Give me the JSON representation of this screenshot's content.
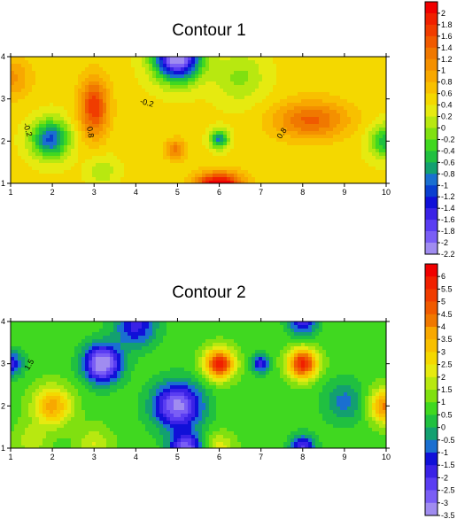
{
  "chart_data": [
    {
      "type": "heatmap",
      "subtype": "filled-contour",
      "title": "Contour 1",
      "x_ticks": [
        1,
        2,
        3,
        4,
        5,
        6,
        7,
        8,
        9,
        10
      ],
      "y_ticks": [
        1,
        2,
        3,
        4
      ],
      "xlim": [
        1,
        10
      ],
      "ylim": [
        1,
        4
      ],
      "grid": false,
      "levels": [
        -2.2,
        -2,
        -1.8,
        -1.6,
        -1.4,
        -1.2,
        -1,
        -0.8,
        -0.6,
        -0.4,
        -0.2,
        0,
        0.2,
        0.4,
        0.6,
        0.8,
        1,
        1.2,
        1.4,
        1.6,
        1.8,
        2
      ],
      "colorbar_labels": [
        "2",
        "1.8",
        "1.6",
        "1.4",
        "1.2",
        "1",
        "0.8",
        "0.6",
        "0.4",
        "0.2",
        "0",
        "-0.2",
        "-0.4",
        "-0.6",
        "-0.8",
        "-1",
        "-1.2",
        "-1.4",
        "-1.6",
        "-1.8",
        "-2",
        "-2.2"
      ],
      "colorbar_max": 2.2,
      "contour_labels": [
        {
          "text": "-0.2",
          "x": 1.35,
          "y": 2.25,
          "rotate": 72
        },
        {
          "text": "0.8",
          "x": 2.85,
          "y": 2.2,
          "rotate": 80
        },
        {
          "text": "-0.2",
          "x": 4.25,
          "y": 2.85,
          "rotate": 15
        },
        {
          "text": "0.8",
          "x": 7.55,
          "y": 2.15,
          "rotate": -55
        }
      ],
      "features": [
        {
          "x": 1,
          "y": 3.5,
          "v": 0.6,
          "s": 0.5
        },
        {
          "x": 1.95,
          "y": 2.05,
          "v": -1.5,
          "s": 0.45
        },
        {
          "x": 3.0,
          "y": 2.8,
          "v": 1.3,
          "s": 0.35,
          "sy": 0.7
        },
        {
          "x": 5.0,
          "y": 4.0,
          "v": -2.8,
          "s": 0.55,
          "sy": 0.55
        },
        {
          "x": 6.0,
          "y": 2.05,
          "v": -1.3,
          "s": 0.22
        },
        {
          "x": 4.95,
          "y": 1.8,
          "v": 0.8,
          "s": 0.25
        },
        {
          "x": 6.0,
          "y": 0.95,
          "v": 2.0,
          "s": 0.55,
          "sy": 0.3
        },
        {
          "x": 8.2,
          "y": 2.5,
          "v": 1.0,
          "s": 0.9,
          "sy": 0.45
        },
        {
          "x": 10.0,
          "y": 2.0,
          "v": -1.0,
          "s": 0.4
        },
        {
          "x": 6.5,
          "y": 3.5,
          "v": -0.5,
          "s": 0.6
        },
        {
          "x": 3.2,
          "y": 1.3,
          "v": -0.4,
          "s": 0.35
        },
        {
          "x": 8.5,
          "y": 3.8,
          "v": 0.1,
          "s": 0.7
        }
      ],
      "base_value": 0.45
    },
    {
      "type": "heatmap",
      "subtype": "filled-contour",
      "title": "Contour 2",
      "x_ticks": [
        1,
        2,
        3,
        4,
        5,
        6,
        7,
        8,
        9,
        10
      ],
      "y_ticks": [
        1,
        2,
        3,
        4
      ],
      "xlim": [
        1,
        10
      ],
      "ylim": [
        1,
        4
      ],
      "grid": false,
      "levels": [
        -3.5,
        -3,
        -2.5,
        -2,
        -1.5,
        -1,
        -0.5,
        0,
        0.5,
        1,
        1.5,
        2,
        2.5,
        3,
        3.5,
        4,
        4.5,
        5,
        5.5,
        6
      ],
      "colorbar_labels": [
        "6",
        "5.5",
        "5",
        "4.5",
        "4",
        "3.5",
        "3",
        "2.5",
        "2",
        "1.5",
        "1",
        "0.5",
        "0",
        "-0.5",
        "-1",
        "-1.5",
        "-2",
        "-2.5",
        "-3",
        "-3.5"
      ],
      "colorbar_max": 6.5,
      "contour_labels": [
        {
          "text": "1.5",
          "x": 1.5,
          "y": 2.95,
          "rotate": -60
        }
      ],
      "features": [
        {
          "x": 3.2,
          "y": 3.0,
          "v": -4.5,
          "s": 0.45
        },
        {
          "x": 5.0,
          "y": 2.0,
          "v": -4.0,
          "s": 0.6,
          "sy": 0.55
        },
        {
          "x": 6.0,
          "y": 3.0,
          "v": 5.0,
          "s": 0.35
        },
        {
          "x": 8.0,
          "y": 3.0,
          "v": 5.0,
          "s": 0.35
        },
        {
          "x": 2.0,
          "y": 2.0,
          "v": 3.0,
          "s": 0.45
        },
        {
          "x": 1.0,
          "y": 3.0,
          "v": -2.5,
          "s": 0.3
        },
        {
          "x": 7.0,
          "y": 3.0,
          "v": -2.5,
          "s": 0.22
        },
        {
          "x": 5.2,
          "y": 1.0,
          "v": -3.5,
          "s": 0.4,
          "sy": 0.35
        },
        {
          "x": 8.0,
          "y": 1.0,
          "v": -3.0,
          "s": 0.3
        },
        {
          "x": 4.0,
          "y": 3.9,
          "v": -2.5,
          "s": 0.5
        },
        {
          "x": 8.0,
          "y": 4.0,
          "v": -2.5,
          "s": 0.35
        },
        {
          "x": 10.0,
          "y": 2.0,
          "v": 3.5,
          "s": 0.4
        },
        {
          "x": 9.0,
          "y": 2.1,
          "v": -1.5,
          "s": 0.5
        },
        {
          "x": 6.0,
          "y": 1.0,
          "v": 1.5,
          "s": 0.35
        },
        {
          "x": 3.0,
          "y": 1.1,
          "v": 1.2,
          "s": 0.4
        },
        {
          "x": 1.5,
          "y": 1.2,
          "v": 1.0,
          "s": 0.4
        }
      ],
      "base_value": 0.8
    }
  ],
  "colorbar_palette": [
    "#a08cf0",
    "#7a5ef5",
    "#5a3df2",
    "#3a22e6",
    "#1010d8",
    "#0a3fd0",
    "#1a6fd0",
    "#13a070",
    "#20c040",
    "#40d820",
    "#80e010",
    "#b8e810",
    "#e6ea10",
    "#f4d800",
    "#f8c000",
    "#f8a800",
    "#f49000",
    "#f07800",
    "#f05a00",
    "#f03c00",
    "#f02000",
    "#f00000"
  ]
}
